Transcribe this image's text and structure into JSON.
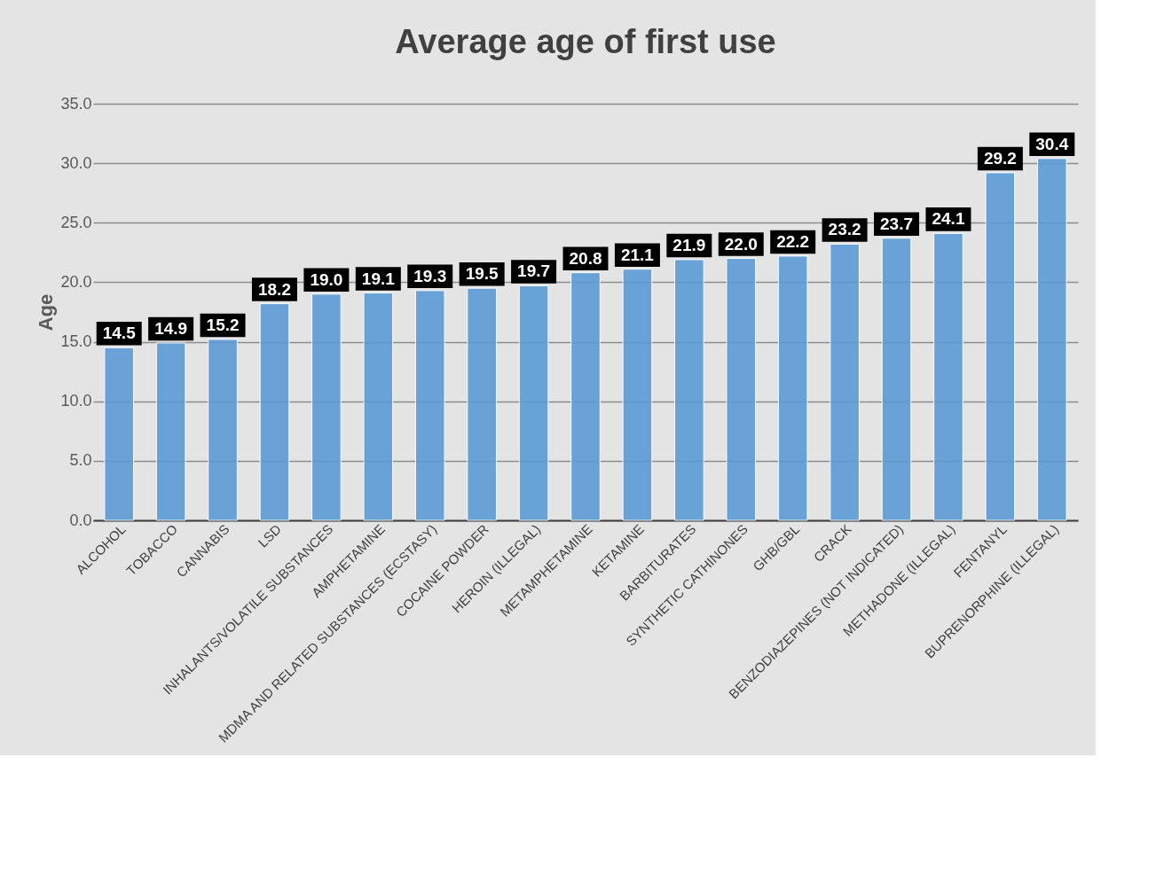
{
  "chart_data": {
    "type": "bar",
    "title": "Average age of first use",
    "ylabel": "Age",
    "categories": [
      "ALCOHOL",
      "TOBACCO",
      "CANNABIS",
      "LSD",
      "INHALANTS/VOLATILE SUBSTANCES",
      "AMPHETAMINE",
      "MDMA AND RELATED SUBSTANCES (ECSTASY)",
      "COCAINE POWDER",
      "HEROIN (ILLEGAL)",
      "METAMPHETAMINE",
      "KETAMINE",
      "BARBITURATES",
      "SYNTHETIC CATHINONES",
      "GHB/GBL",
      "CRACK",
      "BENZODIAZEPINES (NOT INDICATED)",
      "METHADONE (ILLEGAL)",
      "FENTANYL",
      "BUPRENORPHINE (ILLEGAL)"
    ],
    "values": [
      14.5,
      14.9,
      15.2,
      18.2,
      19.0,
      19.1,
      19.3,
      19.5,
      19.7,
      20.8,
      21.1,
      21.9,
      22.0,
      22.2,
      23.2,
      23.7,
      24.1,
      29.2,
      30.4
    ],
    "value_labels": [
      "14.5",
      "14.9",
      "15.2",
      "18.2",
      "19.0",
      "19.1",
      "19.3",
      "19.5",
      "19.7",
      "20.8",
      "21.1",
      "21.9",
      "22.0",
      "22.2",
      "23.2",
      "23.7",
      "24.1",
      "29.2",
      "30.4"
    ],
    "color": "#5b9bd5",
    "ylim": [
      0,
      35
    ],
    "yticks": [
      {
        "value": 0,
        "label": "0.0"
      },
      {
        "value": 5,
        "label": "5.0"
      },
      {
        "value": 10,
        "label": "10.0"
      },
      {
        "value": 15,
        "label": "15.0"
      },
      {
        "value": 20,
        "label": "20.0"
      },
      {
        "value": 25,
        "label": "25.0"
      },
      {
        "value": 30,
        "label": "30.0"
      },
      {
        "value": 35,
        "label": "35.0"
      }
    ],
    "grid": "y"
  }
}
